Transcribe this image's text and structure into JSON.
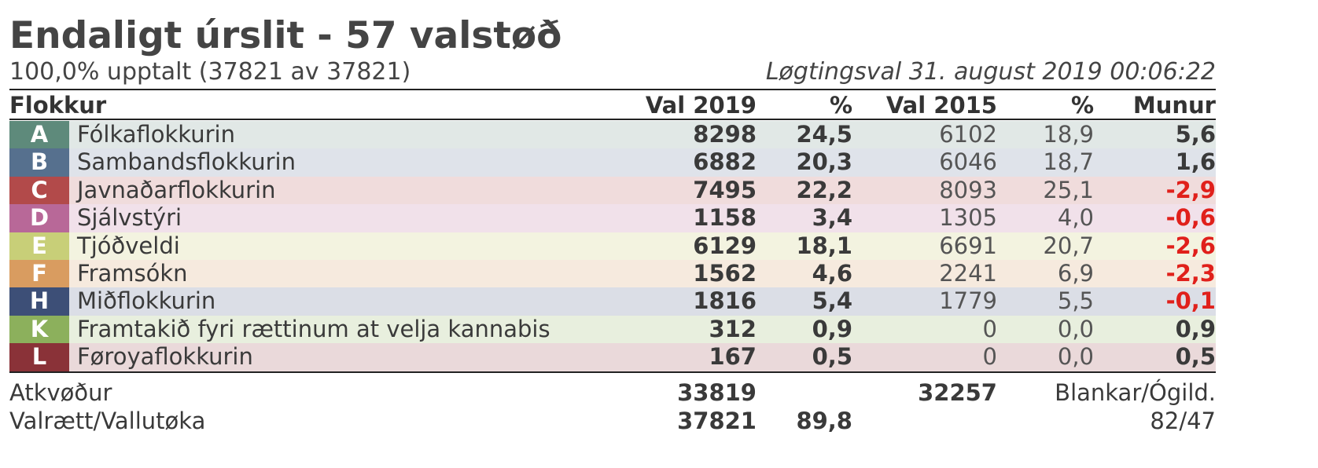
{
  "title": "Endaligt úrslit - 57 valstøð",
  "progress_text": "100,0% upptalt (37821 av 37821)",
  "election_text": "Løgtingsval 31. august 2019 00:06:22",
  "columns": {
    "party": "Flokkur",
    "votes_2019": "Val 2019",
    "pct_2019": "%",
    "votes_2015": "Val 2015",
    "pct_2015": "%",
    "change": "Munur"
  },
  "parties": [
    {
      "letter": "A",
      "name": "Fólkaflokkurin",
      "v19": "8298",
      "p19": "24,5",
      "v15": "6102",
      "p15": "18,9",
      "diff": "5,6",
      "color": "#5e8a7b",
      "bg": "#e1e8e6",
      "diff_negative": false
    },
    {
      "letter": "B",
      "name": "Sambandsflokkurin",
      "v19": "6882",
      "p19": "20,3",
      "v15": "6046",
      "p15": "18,7",
      "diff": "1,6",
      "color": "#56708e",
      "bg": "#dfe3ea",
      "diff_negative": false
    },
    {
      "letter": "C",
      "name": "Javnaðarflokkurin",
      "v19": "7495",
      "p19": "22,2",
      "v15": "8093",
      "p15": "25,1",
      "diff": "-2,9",
      "color": "#b24a4a",
      "bg": "#f0dcdc",
      "diff_negative": true
    },
    {
      "letter": "D",
      "name": "Sjálvstýri",
      "v19": "1158",
      "p19": "3,4",
      "v15": "1305",
      "p15": "4,0",
      "diff": "-0,6",
      "color": "#b86898",
      "bg": "#f1e1ea",
      "diff_negative": true
    },
    {
      "letter": "E",
      "name": "Tjóðveldi",
      "v19": "6129",
      "p19": "18,1",
      "v15": "6691",
      "p15": "20,7",
      "diff": "-2,6",
      "color": "#c8cf78",
      "bg": "#f3f3e0",
      "diff_negative": true
    },
    {
      "letter": "F",
      "name": "Framsókn",
      "v19": "1562",
      "p19": "4,6",
      "v15": "2241",
      "p15": "6,9",
      "diff": "-2,3",
      "color": "#d99c60",
      "bg": "#f6eade",
      "diff_negative": true
    },
    {
      "letter": "H",
      "name": "Miðflokkurin",
      "v19": "1816",
      "p19": "5,4",
      "v15": "1779",
      "p15": "5,5",
      "diff": "-0,1",
      "color": "#3d4f77",
      "bg": "#dbdee6",
      "diff_negative": true
    },
    {
      "letter": "K",
      "name": "Framtakið fyri rættinum at velja kannabis",
      "v19": "312",
      "p19": "0,9",
      "v15": "0",
      "p15": "0,0",
      "diff": "0,9",
      "color": "#8cb05c",
      "bg": "#e8efde",
      "diff_negative": false
    },
    {
      "letter": "L",
      "name": "Føroyaflokkurin",
      "v19": "167",
      "p19": "0,5",
      "v15": "0",
      "p15": "0,0",
      "diff": "0,5",
      "color": "#8a3238",
      "bg": "#ead9da",
      "diff_negative": false
    }
  ],
  "totals": {
    "votes_label": "Atkvøður",
    "votes_2019": "33819",
    "votes_2015": "32257",
    "blank_label": "Blankar/Ógild.",
    "electorate_label": "Valrætt/Vallutøka",
    "electorate": "37821",
    "turnout": "89,8",
    "blank_invalid": "82/47"
  }
}
